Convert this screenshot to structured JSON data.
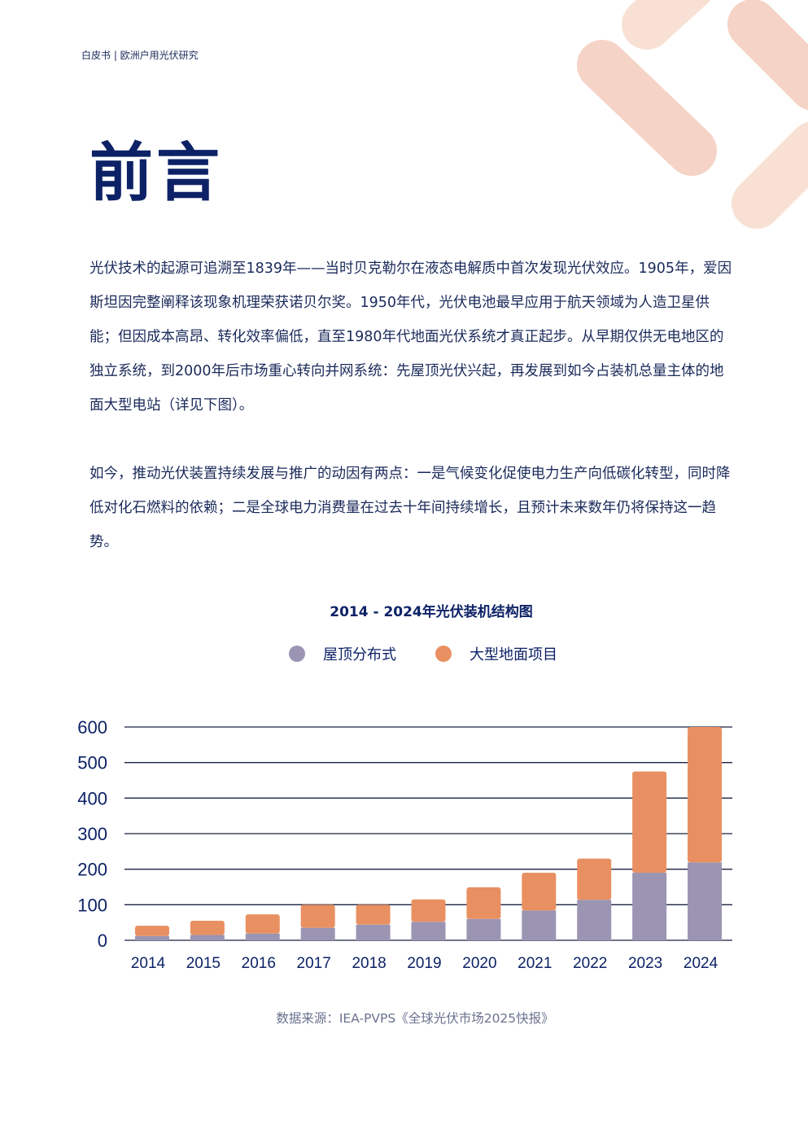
{
  "header": {
    "text": "白皮书 | 欧洲户用光伏研究"
  },
  "page_title": "前言",
  "paragraphs": [
    "光伏技术的起源可追溯至1839年——当时贝克勒尔在液态电解质中首次发现光伏效应。1905年，爱因斯坦因完整阐释该现象机理荣获诺贝尔奖。1950年代，光伏电池最早应用于航天领域为人造卫星供能；但因成本高昂、转化效率偏低，直至1980年代地面光伏系统才真正起步。从早期仅供无电地区的独立系统，到2000年后市场重心转向并网系统：先屋顶光伏兴起，再发展到如今占装机总量主体的地面大型电站（详见下图）。",
    "如今，推动光伏装置持续发展与推广的动因有两点：一是气候变化促使电力生产向低碳化转型，同时降低对化石燃料的依赖；二是全球电力消费量在过去十年间持续增长，且预计未来数年仍将保持这一趋势。"
  ],
  "source": "数据来源：IEA-PVPS《全球光伏市场2025快报》",
  "colors": {
    "rooftop": "#9b95b3",
    "ground": "#e99062",
    "navy": "#0d2266",
    "deco1": "#f5d3c6",
    "deco2": "#f8e1d4"
  },
  "chart_data": {
    "type": "bar",
    "stacked": true,
    "title": "2014 - 2024年光伏装机结构图",
    "categories": [
      "2014",
      "2015",
      "2016",
      "2017",
      "2018",
      "2019",
      "2020",
      "2021",
      "2022",
      "2023",
      "2024"
    ],
    "series": [
      {
        "name": "屋顶分布式",
        "values": [
          12,
          15,
          19,
          35,
          44,
          52,
          60,
          84,
          114,
          190,
          219
        ]
      },
      {
        "name": "大型地面项目",
        "values": [
          29,
          40,
          54,
          65,
          56,
          63,
          89,
          106,
          116,
          285,
          381
        ]
      }
    ],
    "yticks": [
      "0",
      "100",
      "200",
      "300",
      "400",
      "500",
      "600"
    ],
    "ylim": [
      0,
      600
    ],
    "grid": true,
    "legend": "top-center",
    "xlabel": "",
    "ylabel": ""
  }
}
